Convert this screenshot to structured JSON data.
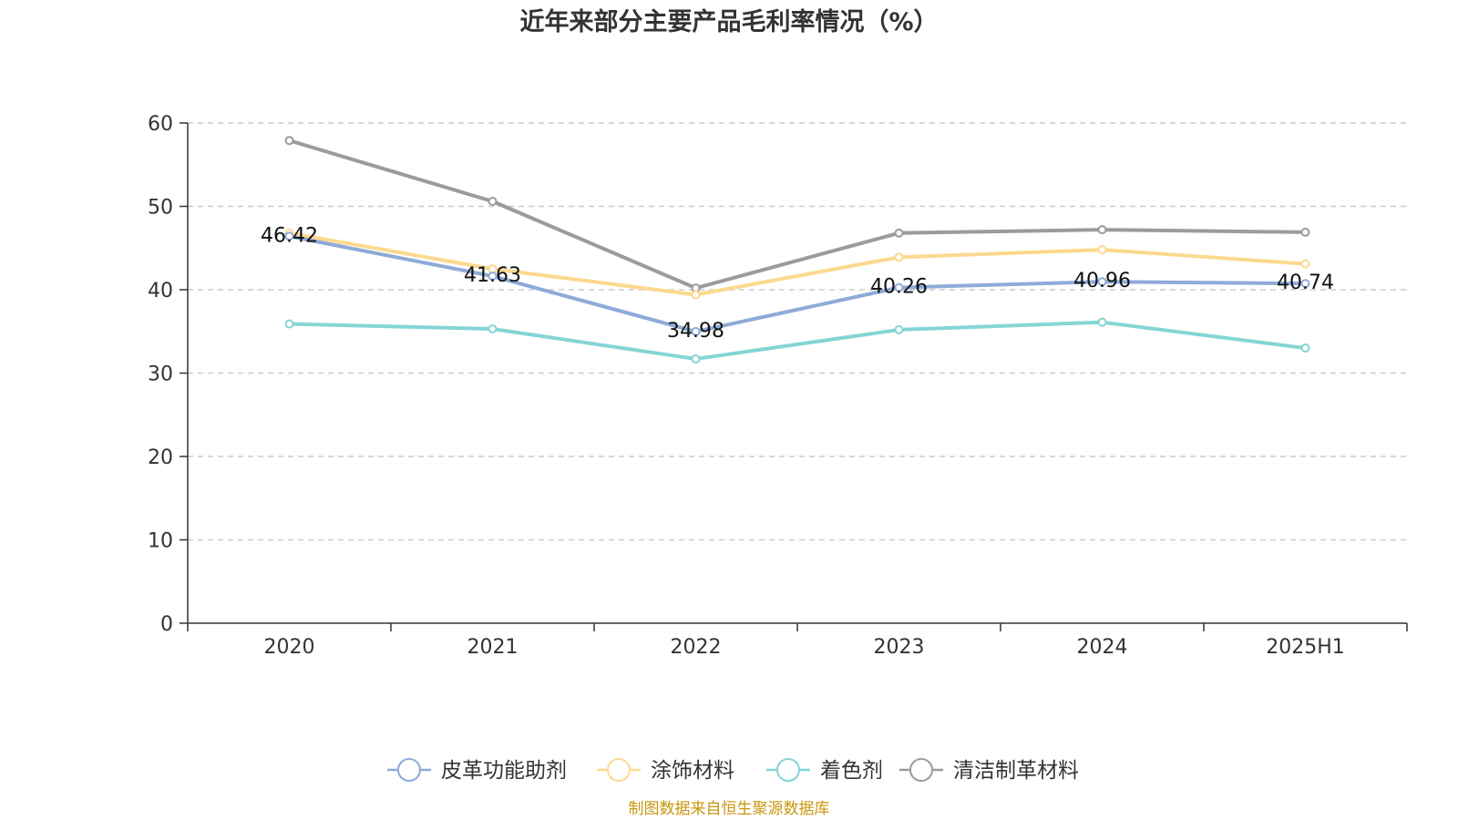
{
  "chart_data": {
    "type": "line",
    "title": "近年来部分主要产品毛利率情况（%）",
    "categories": [
      "2020",
      "2021",
      "2022",
      "2023",
      "2024",
      "2025H1"
    ],
    "ylim": [
      0,
      60
    ],
    "yticks": [
      "0",
      "10",
      "20",
      "30",
      "40",
      "50",
      "60"
    ],
    "grid": true,
    "legend_position": "bottom-center",
    "series": [
      {
        "name": "皮革功能助剂",
        "color": "#8eaad8",
        "values": [
          46.42,
          41.63,
          34.98,
          40.26,
          40.96,
          40.74
        ],
        "labels": [
          "46.42",
          "41.63",
          "34.98",
          "40.26",
          "40.96",
          "40.74"
        ]
      },
      {
        "name": "涂饰材料",
        "color": "#fcd98f",
        "values": [
          46.8,
          42.5,
          39.4,
          43.9,
          44.8,
          43.1
        ]
      },
      {
        "name": "着色剂",
        "color": "#84d5d5",
        "values": [
          35.9,
          35.3,
          31.7,
          35.2,
          36.1,
          33.0
        ]
      },
      {
        "name": "清洁制革材料",
        "color": "#9b9b9b",
        "values": [
          57.9,
          50.6,
          40.2,
          46.8,
          47.2,
          46.9
        ]
      }
    ]
  },
  "source": "制图数据来自恒生聚源数据库"
}
